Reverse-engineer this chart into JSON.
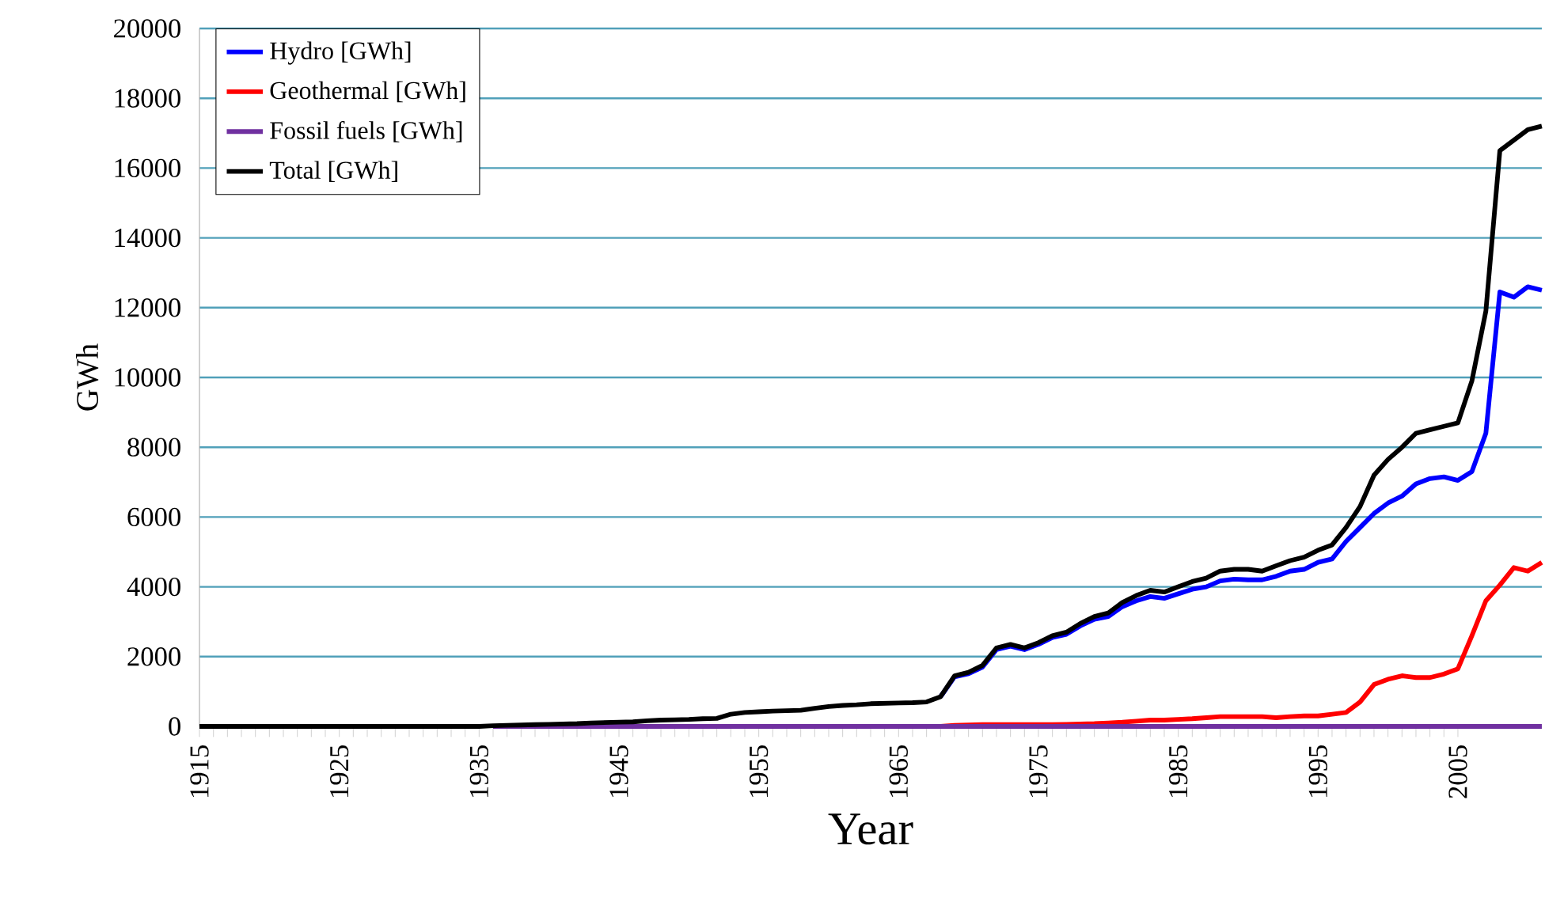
{
  "chart_data": {
    "type": "line",
    "xlabel": "Year",
    "ylabel": "GWh",
    "x": [
      1915,
      1916,
      1917,
      1918,
      1919,
      1920,
      1921,
      1922,
      1923,
      1924,
      1925,
      1926,
      1927,
      1928,
      1929,
      1930,
      1931,
      1932,
      1933,
      1934,
      1935,
      1936,
      1937,
      1938,
      1939,
      1940,
      1941,
      1942,
      1943,
      1944,
      1945,
      1946,
      1947,
      1948,
      1949,
      1950,
      1951,
      1952,
      1953,
      1954,
      1955,
      1956,
      1957,
      1958,
      1959,
      1960,
      1961,
      1962,
      1963,
      1964,
      1965,
      1966,
      1967,
      1968,
      1969,
      1970,
      1971,
      1972,
      1973,
      1974,
      1975,
      1976,
      1977,
      1978,
      1979,
      1980,
      1981,
      1982,
      1983,
      1984,
      1985,
      1986,
      1987,
      1988,
      1989,
      1990,
      1991,
      1992,
      1993,
      1994,
      1995,
      1996,
      1997,
      1998,
      1999,
      2000,
      2001,
      2002,
      2003,
      2004,
      2005,
      2006,
      2007,
      2008,
      2009,
      2010,
      2011
    ],
    "series": [
      {
        "name": "Hydro [GWh]",
        "color": "#0000ff",
        "values": [
          null,
          null,
          null,
          null,
          null,
          null,
          null,
          null,
          null,
          null,
          null,
          null,
          null,
          null,
          null,
          null,
          null,
          null,
          null,
          null,
          null,
          null,
          null,
          null,
          null,
          null,
          null,
          null,
          null,
          null,
          null,
          null,
          null,
          null,
          null,
          null,
          null,
          null,
          null,
          null,
          null,
          null,
          null,
          null,
          null,
          null,
          null,
          null,
          null,
          null,
          null,
          null,
          null,
          850,
          1420,
          1510,
          1700,
          2200,
          2300,
          2200,
          2350,
          2550,
          2640,
          2880,
          3070,
          3150,
          3430,
          3600,
          3720,
          3670,
          3800,
          3930,
          4000,
          4170,
          4220,
          4200,
          4200,
          4300,
          4450,
          4500,
          4700,
          4800,
          5300,
          5700,
          6100,
          6400,
          6600,
          6950,
          7100,
          7150,
          7050,
          7300,
          8400,
          12450,
          12300,
          12600,
          12500
        ]
      },
      {
        "name": "Geothermal [GWh]",
        "color": "#ff0000",
        "values": [
          null,
          null,
          null,
          null,
          null,
          null,
          null,
          null,
          null,
          null,
          null,
          null,
          null,
          null,
          null,
          null,
          null,
          null,
          null,
          null,
          null,
          null,
          null,
          null,
          null,
          null,
          null,
          null,
          null,
          null,
          null,
          null,
          null,
          null,
          null,
          null,
          null,
          null,
          null,
          null,
          null,
          null,
          null,
          null,
          null,
          null,
          null,
          null,
          null,
          null,
          null,
          null,
          null,
          0,
          30,
          40,
          50,
          50,
          50,
          50,
          50,
          50,
          60,
          70,
          80,
          100,
          120,
          150,
          180,
          180,
          200,
          220,
          250,
          280,
          280,
          280,
          280,
          250,
          280,
          300,
          300,
          350,
          400,
          700,
          1200,
          1350,
          1450,
          1400,
          1400,
          1500,
          1650,
          2600,
          3600,
          4050,
          4550,
          4450,
          4700
        ]
      },
      {
        "name": "Fossil fuels [GWh]",
        "color": "#7030a0",
        "values": [
          null,
          null,
          null,
          null,
          null,
          null,
          null,
          null,
          null,
          null,
          null,
          null,
          null,
          null,
          null,
          null,
          null,
          null,
          null,
          null,
          null,
          0,
          0,
          0,
          0,
          0,
          0,
          0,
          0,
          0,
          0,
          0,
          0,
          0,
          0,
          0,
          0,
          0,
          0,
          0,
          0,
          0,
          0,
          0,
          0,
          0,
          0,
          0,
          0,
          0,
          0,
          0,
          0,
          0,
          0,
          0,
          0,
          0,
          0,
          0,
          0,
          0,
          0,
          0,
          0,
          0,
          0,
          0,
          0,
          0,
          0,
          0,
          0,
          0,
          0,
          0,
          0,
          0,
          0,
          0,
          0,
          0,
          0,
          0,
          0,
          0,
          0,
          0,
          0,
          0,
          0,
          0,
          0,
          0,
          0,
          0,
          0
        ]
      },
      {
        "name": "Total [GWh]",
        "color": "#000000",
        "values": [
          0,
          0,
          0,
          0,
          0,
          0,
          0,
          0,
          0,
          0,
          0,
          0,
          0,
          0,
          0,
          0,
          0,
          0,
          0,
          0,
          0,
          20,
          30,
          40,
          50,
          60,
          70,
          80,
          100,
          110,
          120,
          130,
          160,
          180,
          190,
          200,
          220,
          230,
          350,
          400,
          420,
          440,
          450,
          460,
          520,
          570,
          600,
          620,
          650,
          660,
          670,
          680,
          700,
          850,
          1450,
          1550,
          1750,
          2250,
          2350,
          2250,
          2400,
          2600,
          2700,
          2950,
          3150,
          3250,
          3550,
          3750,
          3900,
          3850,
          4000,
          4150,
          4250,
          4450,
          4500,
          4500,
          4450,
          4600,
          4750,
          4850,
          5050,
          5200,
          5700,
          6300,
          7200,
          7650,
          8000,
          8400,
          8500,
          8600,
          8700,
          9900,
          11900,
          16500,
          16800,
          17100,
          17200
        ]
      }
    ],
    "xlim": [
      1915,
      2011
    ],
    "ylim": [
      0,
      20000
    ],
    "xticks": [
      1915,
      1925,
      1935,
      1945,
      1955,
      1965,
      1975,
      1985,
      1995,
      2005
    ],
    "yticks": [
      0,
      2000,
      4000,
      6000,
      8000,
      10000,
      12000,
      14000,
      16000,
      18000,
      20000
    ],
    "grid": "y",
    "legend": "top left",
    "line_style": "solid",
    "marker": "none"
  }
}
